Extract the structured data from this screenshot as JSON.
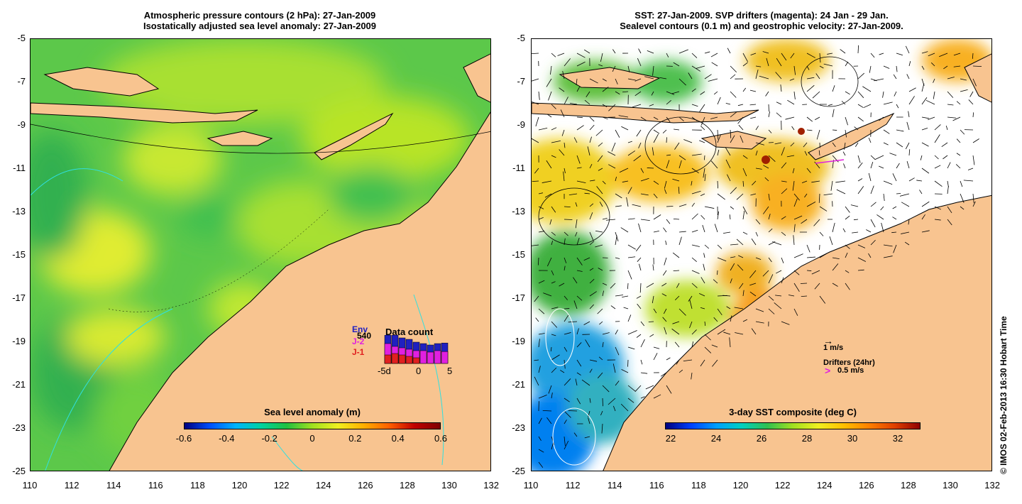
{
  "left_panel": {
    "title_line1": "Atmospheric pressure contours (2 hPa): 27-Jan-2009",
    "title_line2": "Isostatically adjusted sea level anomaly: 27-Jan-2009",
    "colorbar_title": "Sea level anomaly (m)",
    "colorbar_ticks": [
      "-0.6",
      "-0.4",
      "-0.2",
      "0",
      "0.2",
      "0.4",
      "0.6"
    ],
    "data_count": {
      "title": "Data count",
      "legend": [
        {
          "label": "Env",
          "color": "#2020c0"
        },
        {
          "label": "J-2",
          "color": "#e020e0"
        },
        {
          "label": "J-1",
          "color": "#e02020"
        }
      ],
      "badge": "540",
      "axis_labels": [
        "-5d",
        "0",
        "5"
      ],
      "bars": [
        {
          "env": 1.0,
          "j2": 0.7,
          "j1": 0.3
        },
        {
          "env": 1.0,
          "j2": 0.6,
          "j1": 0.35
        },
        {
          "env": 0.9,
          "j2": 0.55,
          "j1": 0.3
        },
        {
          "env": 0.85,
          "j2": 0.5,
          "j1": 0.25
        },
        {
          "env": 0.75,
          "j2": 0.45,
          "j1": 0.2
        },
        {
          "env": 0.7,
          "j2": 0.45,
          "j1": 0.0
        },
        {
          "env": 0.65,
          "j2": 0.4,
          "j1": 0.0
        },
        {
          "env": 0.7,
          "j2": 0.45,
          "j1": 0.0
        },
        {
          "env": 0.72,
          "j2": 0.42,
          "j1": 0.0
        }
      ]
    }
  },
  "right_panel": {
    "title_line1": "SST: 27-Jan-2009. SVP drifters (magenta): 24 Jan - 29 Jan.",
    "title_line2": "Sealevel contours (0.1 m) and geostrophic velocity: 27-Jan-2009.",
    "colorbar_title": "3-day SST composite (deg C)",
    "colorbar_ticks": [
      "22",
      "24",
      "26",
      "28",
      "30",
      "32"
    ],
    "scale_label": "1 m/s",
    "drifters_label": "Drifters (24hr)",
    "drifter_speed_label": "0.5 m/s",
    "drifter_symbol": ">"
  },
  "axes": {
    "y_ticks": [
      "-5",
      "-7",
      "-9",
      "-11",
      "-13",
      "-15",
      "-17",
      "-19",
      "-21",
      "-23",
      "-25"
    ],
    "x_ticks": [
      "110",
      "112",
      "114",
      "116",
      "118",
      "120",
      "122",
      "124",
      "126",
      "128",
      "130",
      "132"
    ]
  },
  "credit": "© IMOS 02-Feb-2013 16:30 Hobart Time",
  "colors": {
    "land": "#f8c490",
    "sla_scale": [
      "#00007f",
      "#0050ff",
      "#00b4ff",
      "#00d2a0",
      "#20c040",
      "#a0e020",
      "#f0f020",
      "#ffb000",
      "#ff6000",
      "#c00000",
      "#800000"
    ],
    "sst_scale": [
      "#00007f",
      "#0040ff",
      "#00a0ff",
      "#00d0c0",
      "#30c050",
      "#a0e020",
      "#f0f020",
      "#ffc000",
      "#ff8000",
      "#e04000",
      "#900000"
    ]
  }
}
